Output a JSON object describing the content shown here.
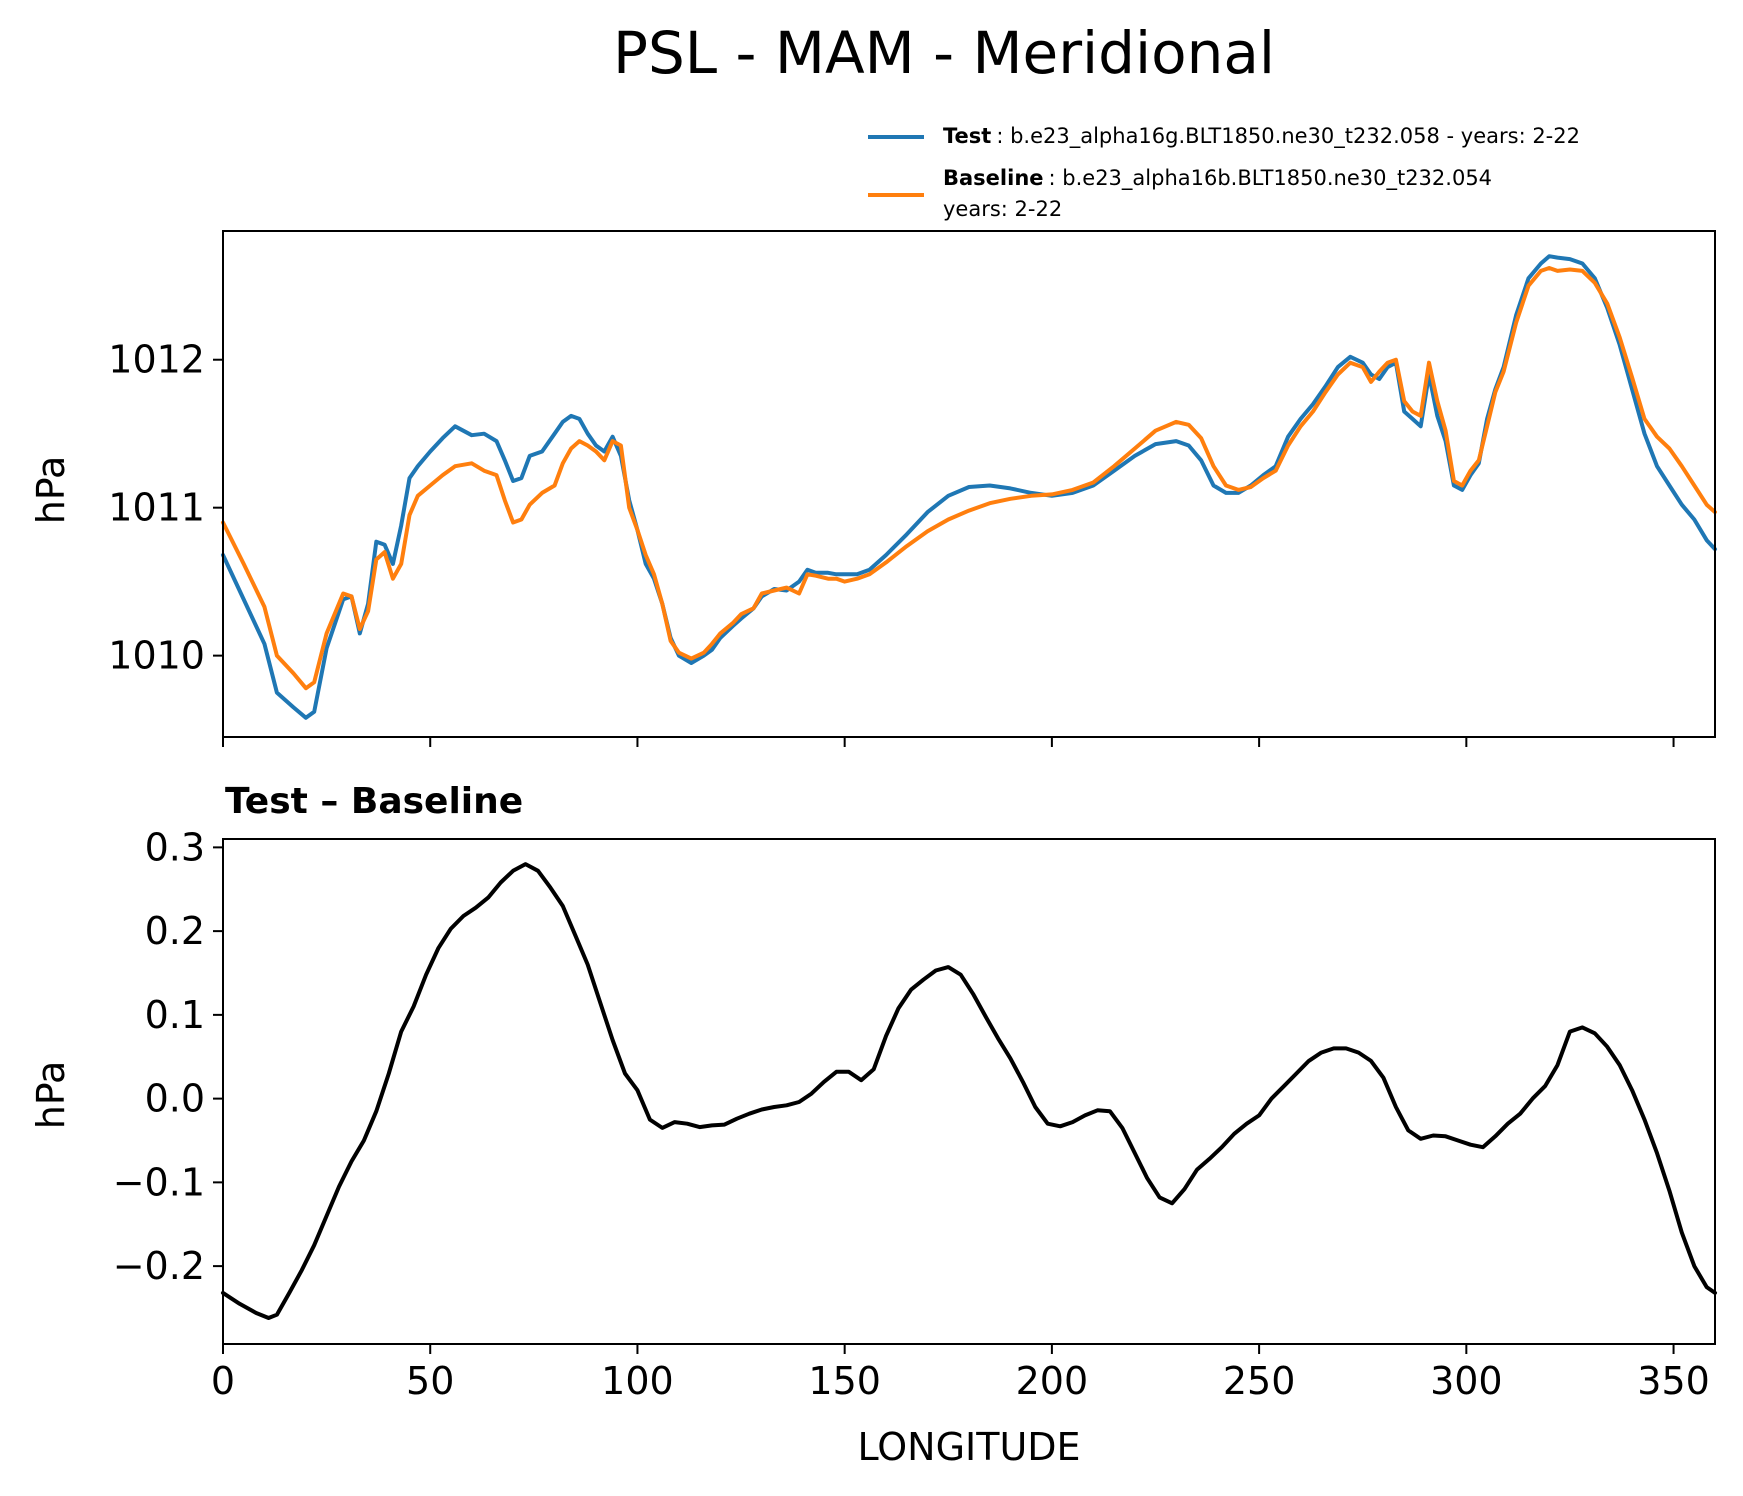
{
  "figure": {
    "title": "PSL - MAM - Meridional"
  },
  "chart_data": [
    {
      "type": "line",
      "panel": "top",
      "title": "",
      "xlabel": "",
      "ylabel": "hPa",
      "xlim": [
        0,
        360
      ],
      "ylim": [
        1009.45,
        1012.87
      ],
      "xticks": [
        0,
        50,
        100,
        150,
        200,
        250,
        300,
        350
      ],
      "xtick_labels_visible": false,
      "yticks": [
        1010,
        1011,
        1012
      ],
      "ytick_labels": [
        "1010",
        "1011",
        "1012"
      ],
      "grid": false,
      "legend_position": "above-right",
      "series": [
        {
          "name": "Test",
          "legend_text": ": b.e23_alpha16g.BLT1850.ne30_t232.058 - years: 2-22",
          "color": "#1f77b4",
          "x": [
            0,
            5,
            10,
            13,
            17,
            20,
            22,
            25,
            29,
            31,
            33,
            35,
            37,
            39,
            41,
            43,
            45,
            47,
            50,
            53,
            56,
            60,
            63,
            66,
            68,
            70,
            72,
            74,
            77,
            80,
            82,
            84,
            86,
            88,
            90,
            92,
            94,
            96,
            98,
            100,
            102,
            104,
            106,
            108,
            110,
            113,
            116,
            118,
            120,
            123,
            125,
            128,
            130,
            133,
            136,
            139,
            141,
            143,
            146,
            148,
            150,
            153,
            156,
            160,
            165,
            170,
            175,
            180,
            185,
            190,
            195,
            200,
            205,
            210,
            215,
            220,
            225,
            230,
            233,
            236,
            239,
            242,
            245,
            248,
            251,
            254,
            257,
            260,
            263,
            266,
            269,
            272,
            275,
            277,
            279,
            281,
            283,
            285,
            287,
            289,
            291,
            293,
            295,
            297,
            299,
            301,
            303,
            305,
            307,
            309,
            312,
            315,
            318,
            320,
            322,
            325,
            328,
            331,
            334,
            337,
            340,
            343,
            346,
            349,
            352,
            355,
            358,
            360
          ],
          "y": [
            1010.68,
            1010.38,
            1010.08,
            1009.75,
            1009.65,
            1009.58,
            1009.62,
            1010.05,
            1010.38,
            1010.4,
            1010.15,
            1010.35,
            1010.77,
            1010.75,
            1010.62,
            1010.88,
            1011.2,
            1011.28,
            1011.38,
            1011.47,
            1011.55,
            1011.49,
            1011.5,
            1011.45,
            1011.32,
            1011.18,
            1011.2,
            1011.35,
            1011.38,
            1011.5,
            1011.58,
            1011.62,
            1011.6,
            1011.5,
            1011.42,
            1011.38,
            1011.48,
            1011.35,
            1011.05,
            1010.85,
            1010.62,
            1010.52,
            1010.35,
            1010.12,
            1010.0,
            1009.95,
            1010.0,
            1010.04,
            1010.12,
            1010.2,
            1010.25,
            1010.32,
            1010.4,
            1010.45,
            1010.44,
            1010.5,
            1010.58,
            1010.56,
            1010.56,
            1010.55,
            1010.55,
            1010.55,
            1010.58,
            1010.68,
            1010.82,
            1010.97,
            1011.08,
            1011.14,
            1011.15,
            1011.13,
            1011.1,
            1011.08,
            1011.1,
            1011.15,
            1011.25,
            1011.35,
            1011.43,
            1011.45,
            1011.42,
            1011.32,
            1011.15,
            1011.1,
            1011.1,
            1011.15,
            1011.22,
            1011.28,
            1011.48,
            1011.6,
            1011.7,
            1011.82,
            1011.95,
            1012.02,
            1011.98,
            1011.9,
            1011.87,
            1011.95,
            1011.98,
            1011.65,
            1011.6,
            1011.55,
            1011.9,
            1011.62,
            1011.45,
            1011.15,
            1011.12,
            1011.22,
            1011.3,
            1011.6,
            1011.8,
            1011.95,
            1012.3,
            1012.55,
            1012.65,
            1012.7,
            1012.69,
            1012.68,
            1012.65,
            1012.55,
            1012.35,
            1012.1,
            1011.8,
            1011.5,
            1011.28,
            1011.15,
            1011.02,
            1010.92,
            1010.78,
            1010.72
          ]
        },
        {
          "name": "Baseline",
          "legend_text": ": b.e23_alpha16b.BLT1850.ne30_t232.054",
          "legend_text_line2": "years: 2-22",
          "color": "#ff7f0e",
          "x": [
            0,
            5,
            10,
            13,
            17,
            20,
            22,
            25,
            29,
            31,
            33,
            35,
            37,
            39,
            41,
            43,
            45,
            47,
            50,
            53,
            56,
            60,
            63,
            66,
            68,
            70,
            72,
            74,
            77,
            80,
            82,
            84,
            86,
            88,
            90,
            92,
            94,
            96,
            98,
            100,
            102,
            104,
            106,
            108,
            110,
            113,
            116,
            118,
            120,
            123,
            125,
            128,
            130,
            133,
            136,
            139,
            141,
            143,
            146,
            148,
            150,
            153,
            156,
            160,
            165,
            170,
            175,
            180,
            185,
            190,
            195,
            200,
            205,
            210,
            215,
            220,
            225,
            230,
            233,
            236,
            239,
            242,
            245,
            248,
            251,
            254,
            257,
            260,
            263,
            266,
            269,
            272,
            275,
            277,
            279,
            281,
            283,
            285,
            287,
            289,
            291,
            293,
            295,
            297,
            299,
            301,
            303,
            305,
            307,
            309,
            312,
            315,
            318,
            320,
            322,
            325,
            328,
            331,
            334,
            337,
            340,
            343,
            346,
            349,
            352,
            355,
            358,
            360
          ],
          "y": [
            1010.9,
            1010.62,
            1010.33,
            1010.0,
            1009.88,
            1009.78,
            1009.82,
            1010.15,
            1010.42,
            1010.4,
            1010.18,
            1010.3,
            1010.65,
            1010.7,
            1010.52,
            1010.62,
            1010.95,
            1011.08,
            1011.15,
            1011.22,
            1011.28,
            1011.3,
            1011.25,
            1011.22,
            1011.05,
            1010.9,
            1010.92,
            1011.02,
            1011.1,
            1011.15,
            1011.3,
            1011.4,
            1011.45,
            1011.42,
            1011.38,
            1011.32,
            1011.45,
            1011.42,
            1011.0,
            1010.85,
            1010.68,
            1010.55,
            1010.35,
            1010.1,
            1010.02,
            1009.98,
            1010.02,
            1010.08,
            1010.15,
            1010.22,
            1010.28,
            1010.32,
            1010.42,
            1010.44,
            1010.46,
            1010.42,
            1010.55,
            1010.54,
            1010.52,
            1010.52,
            1010.5,
            1010.52,
            1010.55,
            1010.63,
            1010.74,
            1010.84,
            1010.92,
            1010.98,
            1011.03,
            1011.06,
            1011.08,
            1011.09,
            1011.12,
            1011.17,
            1011.28,
            1011.4,
            1011.52,
            1011.58,
            1011.56,
            1011.47,
            1011.28,
            1011.15,
            1011.12,
            1011.14,
            1011.2,
            1011.25,
            1011.42,
            1011.55,
            1011.65,
            1011.78,
            1011.9,
            1011.98,
            1011.95,
            1011.85,
            1011.92,
            1011.98,
            1012.0,
            1011.72,
            1011.65,
            1011.62,
            1011.98,
            1011.72,
            1011.52,
            1011.18,
            1011.15,
            1011.25,
            1011.32,
            1011.55,
            1011.78,
            1011.92,
            1012.25,
            1012.5,
            1012.6,
            1012.62,
            1012.6,
            1012.61,
            1012.6,
            1012.52,
            1012.38,
            1012.15,
            1011.88,
            1011.6,
            1011.48,
            1011.4,
            1011.28,
            1011.15,
            1011.02,
            1010.97
          ]
        }
      ]
    },
    {
      "type": "line",
      "panel": "bottom",
      "title": "Test – Baseline",
      "xlabel": "LONGITUDE",
      "ylabel": "hPa",
      "xlim": [
        0,
        360
      ],
      "ylim": [
        -0.293,
        0.31
      ],
      "xticks": [
        0,
        50,
        100,
        150,
        200,
        250,
        300,
        350
      ],
      "xtick_labels": [
        "0",
        "50",
        "100",
        "150",
        "200",
        "250",
        "300",
        "350"
      ],
      "yticks": [
        -0.2,
        -0.1,
        0.0,
        0.1,
        0.2,
        0.3
      ],
      "ytick_labels": [
        "−0.2",
        "−0.1",
        "0.0",
        "0.1",
        "0.2",
        "0.3"
      ],
      "grid": false,
      "series": [
        {
          "name": "",
          "color": "#000000",
          "x": [
            0,
            4,
            8,
            11,
            13,
            16,
            19,
            22,
            25,
            28,
            31,
            34,
            37,
            40,
            43,
            46,
            49,
            52,
            55,
            58,
            61,
            64,
            67,
            70,
            73,
            76,
            79,
            82,
            85,
            88,
            91,
            94,
            97,
            100,
            103,
            106,
            109,
            112,
            115,
            118,
            121,
            124,
            127,
            130,
            133,
            136,
            139,
            142,
            145,
            148,
            151,
            154,
            157,
            160,
            163,
            166,
            169,
            172,
            175,
            178,
            181,
            184,
            187,
            190,
            193,
            196,
            199,
            202,
            205,
            208,
            211,
            214,
            217,
            220,
            223,
            226,
            229,
            232,
            235,
            238,
            241,
            244,
            247,
            250,
            253,
            256,
            259,
            262,
            265,
            268,
            271,
            274,
            277,
            280,
            283,
            286,
            289,
            292,
            295,
            298,
            301,
            304,
            307,
            310,
            313,
            316,
            319,
            322,
            325,
            328,
            331,
            334,
            337,
            340,
            343,
            346,
            349,
            352,
            355,
            358,
            360
          ],
          "y": [
            -0.232,
            -0.245,
            -0.256,
            -0.262,
            -0.258,
            -0.232,
            -0.205,
            -0.175,
            -0.14,
            -0.105,
            -0.075,
            -0.05,
            -0.015,
            0.03,
            0.08,
            0.11,
            0.148,
            0.18,
            0.203,
            0.218,
            0.228,
            0.24,
            0.258,
            0.272,
            0.28,
            0.272,
            0.252,
            0.23,
            0.195,
            0.16,
            0.115,
            0.07,
            0.03,
            0.01,
            -0.025,
            -0.035,
            -0.028,
            -0.03,
            -0.034,
            -0.032,
            -0.031,
            -0.024,
            -0.018,
            -0.013,
            -0.01,
            -0.008,
            -0.004,
            0.006,
            0.02,
            0.032,
            0.032,
            0.022,
            0.035,
            0.075,
            0.108,
            0.13,
            0.142,
            0.153,
            0.157,
            0.148,
            0.125,
            0.098,
            0.072,
            0.048,
            0.02,
            -0.01,
            -0.03,
            -0.033,
            -0.028,
            -0.02,
            -0.014,
            -0.015,
            -0.035,
            -0.065,
            -0.095,
            -0.118,
            -0.125,
            -0.108,
            -0.085,
            -0.072,
            -0.058,
            -0.042,
            -0.03,
            -0.02,
            0.0,
            0.015,
            0.03,
            0.045,
            0.055,
            0.06,
            0.06,
            0.055,
            0.045,
            0.025,
            -0.01,
            -0.038,
            -0.048,
            -0.044,
            -0.045,
            -0.05,
            -0.055,
            -0.058,
            -0.045,
            -0.03,
            -0.018,
            0.0,
            0.015,
            0.04,
            0.08,
            0.085,
            0.078,
            0.062,
            0.04,
            0.01,
            -0.025,
            -0.065,
            -0.11,
            -0.16,
            -0.2,
            -0.225,
            -0.232
          ]
        }
      ]
    }
  ]
}
